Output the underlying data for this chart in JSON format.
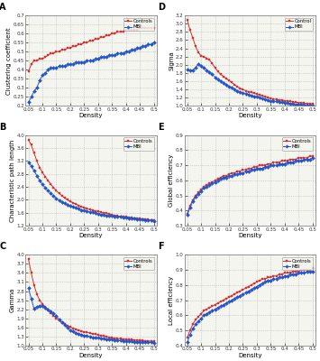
{
  "density": [
    0.05,
    0.06,
    0.07,
    0.08,
    0.09,
    0.1,
    0.11,
    0.12,
    0.13,
    0.14,
    0.15,
    0.16,
    0.17,
    0.18,
    0.19,
    0.2,
    0.21,
    0.22,
    0.23,
    0.24,
    0.25,
    0.26,
    0.27,
    0.28,
    0.29,
    0.3,
    0.31,
    0.32,
    0.33,
    0.34,
    0.35,
    0.36,
    0.37,
    0.38,
    0.39,
    0.4,
    0.41,
    0.42,
    0.43,
    0.44,
    0.45,
    0.46,
    0.47,
    0.48,
    0.49,
    0.5
  ],
  "panels": {
    "A": {
      "title": "A",
      "ylabel": "Clustering coefficient",
      "xlabel": "Density",
      "ylim": [
        0.2,
        0.7
      ],
      "yticks": [
        0.2,
        0.25,
        0.3,
        0.35,
        0.4,
        0.45,
        0.5,
        0.55,
        0.6,
        0.65,
        0.7
      ],
      "controls": [
        0.39,
        0.43,
        0.45,
        0.45,
        0.46,
        0.46,
        0.47,
        0.48,
        0.49,
        0.49,
        0.5,
        0.5,
        0.51,
        0.51,
        0.52,
        0.52,
        0.53,
        0.53,
        0.54,
        0.54,
        0.55,
        0.55,
        0.56,
        0.56,
        0.57,
        0.57,
        0.58,
        0.58,
        0.59,
        0.59,
        0.6,
        0.6,
        0.61,
        0.61,
        0.61,
        0.62,
        0.62,
        0.62,
        0.62,
        0.62,
        0.63,
        0.63,
        0.63,
        0.63,
        0.63,
        0.63
      ],
      "mbi": [
        0.22,
        0.25,
        0.28,
        0.3,
        0.34,
        0.37,
        0.38,
        0.4,
        0.41,
        0.41,
        0.41,
        0.42,
        0.42,
        0.42,
        0.43,
        0.43,
        0.43,
        0.44,
        0.44,
        0.44,
        0.44,
        0.45,
        0.45,
        0.45,
        0.46,
        0.46,
        0.47,
        0.47,
        0.47,
        0.48,
        0.48,
        0.48,
        0.49,
        0.49,
        0.49,
        0.5,
        0.5,
        0.51,
        0.51,
        0.52,
        0.52,
        0.53,
        0.53,
        0.54,
        0.54,
        0.55
      ]
    },
    "B": {
      "title": "B",
      "ylabel": "Characteristic path length",
      "xlabel": "Density",
      "ylim": [
        1.2,
        4.0
      ],
      "yticks": [
        1.2,
        1.6,
        2.0,
        2.4,
        2.8,
        3.2,
        3.6,
        4.0
      ],
      "controls": [
        3.85,
        3.7,
        3.45,
        3.2,
        3.0,
        2.85,
        2.72,
        2.6,
        2.48,
        2.38,
        2.28,
        2.2,
        2.13,
        2.06,
        2.0,
        1.95,
        1.91,
        1.87,
        1.83,
        1.79,
        1.76,
        1.73,
        1.7,
        1.68,
        1.66,
        1.64,
        1.62,
        1.6,
        1.58,
        1.56,
        1.54,
        1.52,
        1.5,
        1.49,
        1.48,
        1.47,
        1.46,
        1.45,
        1.44,
        1.43,
        1.42,
        1.41,
        1.4,
        1.39,
        1.38,
        1.37
      ],
      "mbi": [
        3.15,
        3.05,
        2.9,
        2.75,
        2.6,
        2.48,
        2.38,
        2.28,
        2.2,
        2.12,
        2.05,
        1.99,
        1.94,
        1.89,
        1.85,
        1.81,
        1.78,
        1.75,
        1.72,
        1.69,
        1.67,
        1.65,
        1.63,
        1.61,
        1.59,
        1.57,
        1.55,
        1.54,
        1.52,
        1.51,
        1.5,
        1.49,
        1.48,
        1.47,
        1.46,
        1.45,
        1.44,
        1.43,
        1.42,
        1.41,
        1.4,
        1.39,
        1.38,
        1.37,
        1.36,
        1.35
      ]
    },
    "C": {
      "title": "C",
      "ylabel": "Gamma",
      "xlabel": "Density",
      "ylim": [
        1.0,
        4.0
      ],
      "yticks": [
        1.0,
        1.3,
        1.6,
        1.9,
        2.2,
        2.5,
        2.8,
        3.1,
        3.4,
        3.7,
        4.0
      ],
      "controls": [
        3.85,
        3.4,
        3.0,
        2.7,
        2.5,
        2.38,
        2.28,
        2.18,
        2.08,
        1.99,
        1.9,
        1.82,
        1.75,
        1.7,
        1.65,
        1.61,
        1.57,
        1.54,
        1.51,
        1.48,
        1.45,
        1.43,
        1.41,
        1.39,
        1.37,
        1.35,
        1.33,
        1.31,
        1.29,
        1.27,
        1.25,
        1.24,
        1.23,
        1.22,
        1.21,
        1.2,
        1.19,
        1.19,
        1.18,
        1.17,
        1.17,
        1.16,
        1.15,
        1.15,
        1.14,
        1.13
      ],
      "mbi": [
        2.9,
        2.55,
        2.22,
        2.28,
        2.32,
        2.3,
        2.25,
        2.18,
        2.12,
        2.06,
        1.97,
        1.87,
        1.78,
        1.68,
        1.58,
        1.51,
        1.46,
        1.42,
        1.39,
        1.36,
        1.33,
        1.31,
        1.29,
        1.27,
        1.26,
        1.25,
        1.24,
        1.22,
        1.21,
        1.2,
        1.19,
        1.18,
        1.17,
        1.16,
        1.15,
        1.15,
        1.14,
        1.13,
        1.12,
        1.12,
        1.11,
        1.11,
        1.1,
        1.1,
        1.1,
        1.09
      ]
    },
    "D": {
      "title": "D",
      "ylabel": "Sigma",
      "xlabel": "Density",
      "ylim": [
        1.0,
        3.2
      ],
      "yticks": [
        1.0,
        1.2,
        1.4,
        1.6,
        1.8,
        2.0,
        2.2,
        2.4,
        2.6,
        2.8,
        3.0,
        3.2
      ],
      "controls": [
        3.1,
        2.85,
        2.65,
        2.45,
        2.3,
        2.22,
        2.2,
        2.16,
        2.12,
        2.03,
        1.93,
        1.84,
        1.77,
        1.72,
        1.67,
        1.62,
        1.57,
        1.52,
        1.47,
        1.43,
        1.4,
        1.37,
        1.35,
        1.33,
        1.31,
        1.29,
        1.27,
        1.25,
        1.23,
        1.21,
        1.19,
        1.17,
        1.16,
        1.15,
        1.14,
        1.13,
        1.12,
        1.11,
        1.1,
        1.09,
        1.08,
        1.08,
        1.07,
        1.06,
        1.06,
        1.05
      ],
      "mbi": [
        1.88,
        1.87,
        1.87,
        1.93,
        2.02,
        1.97,
        1.92,
        1.87,
        1.82,
        1.77,
        1.7,
        1.64,
        1.6,
        1.56,
        1.52,
        1.48,
        1.44,
        1.4,
        1.37,
        1.34,
        1.32,
        1.3,
        1.28,
        1.26,
        1.24,
        1.22,
        1.2,
        1.18,
        1.16,
        1.14,
        1.13,
        1.12,
        1.11,
        1.1,
        1.09,
        1.08,
        1.07,
        1.06,
        1.05,
        1.04,
        1.04,
        1.03,
        1.03,
        1.02,
        1.02,
        1.01
      ]
    },
    "E": {
      "title": "E",
      "ylabel": "Global efficiency",
      "xlabel": "Density",
      "ylim": [
        0.3,
        0.9
      ],
      "yticks": [
        0.3,
        0.4,
        0.5,
        0.6,
        0.7,
        0.8,
        0.9
      ],
      "controls": [
        0.38,
        0.43,
        0.47,
        0.5,
        0.52,
        0.54,
        0.56,
        0.57,
        0.58,
        0.59,
        0.6,
        0.61,
        0.62,
        0.63,
        0.63,
        0.64,
        0.65,
        0.65,
        0.66,
        0.66,
        0.67,
        0.67,
        0.68,
        0.68,
        0.69,
        0.69,
        0.7,
        0.7,
        0.7,
        0.71,
        0.71,
        0.72,
        0.72,
        0.72,
        0.73,
        0.73,
        0.73,
        0.74,
        0.74,
        0.74,
        0.75,
        0.75,
        0.75,
        0.75,
        0.76,
        0.76
      ],
      "mbi": [
        0.37,
        0.42,
        0.46,
        0.49,
        0.51,
        0.53,
        0.55,
        0.56,
        0.57,
        0.58,
        0.59,
        0.6,
        0.61,
        0.62,
        0.62,
        0.63,
        0.63,
        0.64,
        0.64,
        0.65,
        0.65,
        0.66,
        0.66,
        0.67,
        0.67,
        0.68,
        0.68,
        0.68,
        0.69,
        0.69,
        0.7,
        0.7,
        0.7,
        0.71,
        0.71,
        0.71,
        0.72,
        0.72,
        0.72,
        0.73,
        0.73,
        0.73,
        0.74,
        0.74,
        0.74,
        0.75
      ]
    },
    "F": {
      "title": "F",
      "ylabel": "Local efficiency",
      "xlabel": "Density",
      "ylim": [
        0.4,
        1.0
      ],
      "yticks": [
        0.4,
        0.5,
        0.6,
        0.7,
        0.8,
        0.9,
        1.0
      ],
      "controls": [
        0.45,
        0.5,
        0.54,
        0.57,
        0.59,
        0.61,
        0.63,
        0.64,
        0.65,
        0.66,
        0.67,
        0.68,
        0.69,
        0.7,
        0.71,
        0.72,
        0.73,
        0.74,
        0.75,
        0.76,
        0.77,
        0.78,
        0.79,
        0.8,
        0.81,
        0.82,
        0.83,
        0.84,
        0.84,
        0.85,
        0.85,
        0.86,
        0.86,
        0.87,
        0.87,
        0.88,
        0.88,
        0.88,
        0.89,
        0.89,
        0.89,
        0.9,
        0.9,
        0.9,
        0.9,
        0.91
      ],
      "mbi": [
        0.42,
        0.47,
        0.51,
        0.54,
        0.56,
        0.58,
        0.6,
        0.61,
        0.62,
        0.63,
        0.64,
        0.65,
        0.66,
        0.67,
        0.68,
        0.69,
        0.7,
        0.71,
        0.72,
        0.73,
        0.74,
        0.75,
        0.76,
        0.77,
        0.78,
        0.79,
        0.8,
        0.81,
        0.82,
        0.83,
        0.83,
        0.84,
        0.84,
        0.85,
        0.85,
        0.86,
        0.86,
        0.87,
        0.87,
        0.87,
        0.88,
        0.88,
        0.88,
        0.89,
        0.89,
        0.89
      ]
    }
  },
  "color_controls": "#cc3333",
  "color_mbi": "#2255cc",
  "marker_controls": "s",
  "marker_mbi": "D",
  "markersize": 2.0,
  "linewidth": 0.7,
  "legend_controls_left": "Controls",
  "legend_mbi_left": "MBI",
  "legend_controls_D": "Control",
  "legend_mbi_D": "MBI",
  "xtick_labels": [
    "0.05",
    "0.1",
    "0.15",
    "0.2",
    "0.25",
    "0.3",
    "0.35",
    "0.4",
    "0.45",
    "0.5"
  ],
  "xticks": [
    0.05,
    0.1,
    0.15,
    0.2,
    0.25,
    0.3,
    0.35,
    0.4,
    0.45,
    0.5
  ],
  "xlim": [
    0.04,
    0.51
  ],
  "bg_color": "#f5f5f0",
  "grid_color": "#aaaaaa"
}
